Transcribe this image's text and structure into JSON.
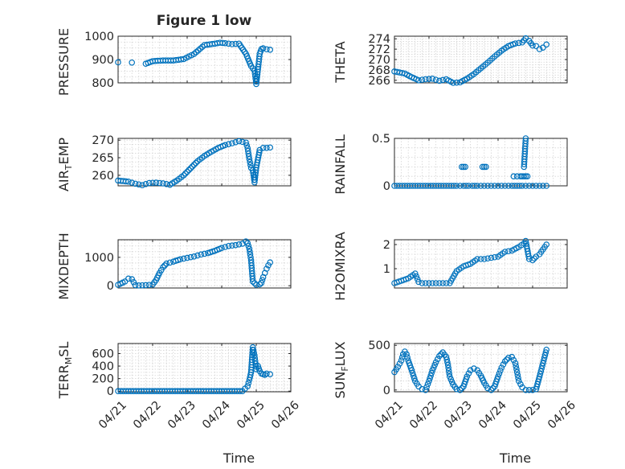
{
  "figure_title": "Figure 1 low",
  "marker_color": "#0072bd",
  "chart_data": [
    {
      "type": "scatter",
      "id": "pressure",
      "ylabel": "PRESSURE",
      "ylim": [
        800,
        1000
      ],
      "yticks": [
        800,
        900,
        1000
      ],
      "xlim": [
        "04/21",
        "04/26"
      ],
      "xticks": [
        "04/21",
        "04/22",
        "04/23",
        "04/24",
        "04/25",
        "04/26"
      ],
      "xlabel": "",
      "grid": true,
      "series": [
        {
          "x": [
            0.0,
            0.4,
            0.8,
            1.0,
            1.3,
            1.6,
            1.9,
            2.2,
            2.5,
            2.8,
            2.95,
            3.1,
            3.3,
            3.5,
            3.7,
            3.85,
            3.95,
            4.0,
            4.05,
            4.1,
            4.15,
            4.2,
            4.3,
            4.4
          ],
          "y": [
            888,
            887,
            882,
            893,
            896,
            896,
            902,
            924,
            962,
            968,
            972,
            970,
            966,
            968,
            925,
            872,
            852,
            795,
            858,
            925,
            945,
            948,
            944,
            942
          ]
        }
      ]
    },
    {
      "type": "scatter",
      "id": "theta",
      "ylabel": "THETA",
      "ylim": [
        265.5,
        274.5
      ],
      "yticks": [
        266,
        268,
        270,
        272,
        274
      ],
      "xlim": [
        "04/21",
        "04/26"
      ],
      "xticks": [
        "04/21",
        "04/22",
        "04/23",
        "04/24",
        "04/25",
        "04/26"
      ],
      "xlabel": "",
      "grid": true,
      "series": [
        {
          "x": [
            0.0,
            0.3,
            0.5,
            0.7,
            0.9,
            1.1,
            1.3,
            1.5,
            1.7,
            1.9,
            2.1,
            2.3,
            2.5,
            2.7,
            2.9,
            3.1,
            3.3,
            3.5,
            3.7,
            3.8,
            3.9,
            4.0,
            4.1,
            4.2,
            4.3,
            4.4
          ],
          "y": [
            267.7,
            267.3,
            266.6,
            266.0,
            266.2,
            266.3,
            265.9,
            266.2,
            265.5,
            265.6,
            266.3,
            267.2,
            268.3,
            269.4,
            270.6,
            271.7,
            272.6,
            273.1,
            273.3,
            274.1,
            273.6,
            272.7,
            272.6,
            272.0,
            272.3,
            272.9
          ]
        }
      ]
    },
    {
      "type": "scatter",
      "id": "air_temp",
      "ylabel": "AIR_TEMP",
      "ylim": [
        257,
        270.5
      ],
      "yticks": [
        260,
        265,
        270
      ],
      "xlim": [
        "04/21",
        "04/26"
      ],
      "xticks": [
        "04/21",
        "04/22",
        "04/23",
        "04/24",
        "04/25",
        "04/26"
      ],
      "xlabel": "",
      "grid": true,
      "series": [
        {
          "x": [
            0.0,
            0.3,
            0.5,
            0.7,
            0.9,
            1.1,
            1.3,
            1.5,
            1.7,
            1.9,
            2.1,
            2.3,
            2.5,
            2.7,
            2.9,
            3.1,
            3.3,
            3.5,
            3.7,
            3.75,
            3.8,
            3.85,
            3.9,
            3.95,
            4.0,
            4.1,
            4.2,
            4.3,
            4.4
          ],
          "y": [
            258.5,
            258.2,
            257.6,
            257.2,
            257.8,
            257.9,
            257.7,
            257.3,
            258.5,
            260.0,
            262.0,
            264.0,
            265.5,
            266.7,
            267.8,
            268.6,
            269.1,
            269.7,
            269.3,
            267.7,
            264.6,
            262.1,
            261.4,
            258.0,
            262.2,
            267.2,
            267.8,
            267.8,
            267.9
          ]
        }
      ]
    },
    {
      "type": "scatter",
      "id": "rainfall",
      "ylabel": "RAINFALL",
      "ylim": [
        0,
        0.5
      ],
      "yticks": [
        0,
        0.5
      ],
      "xlim": [
        "04/21",
        "04/26"
      ],
      "xticks": [
        "04/21",
        "04/22",
        "04/23",
        "04/24",
        "04/25",
        "04/26"
      ],
      "xlabel": "",
      "grid": true,
      "series": [
        {
          "x": [
            0.0,
            0.3,
            0.6,
            0.9,
            1.2,
            1.5,
            1.8,
            2.0,
            2.15,
            2.25,
            2.4,
            2.6,
            2.8,
            2.9,
            3.0,
            3.2,
            3.4,
            3.55,
            3.7,
            3.8,
            3.9,
            4.0,
            4.2,
            4.4,
            1.95,
            2.0,
            2.05,
            2.55,
            2.6,
            2.65,
            3.45,
            3.55,
            3.65,
            3.7,
            3.75,
            3.8,
            3.85,
            3.75,
            3.8
          ],
          "y": [
            0,
            0,
            0,
            0,
            0,
            0,
            0,
            0,
            0,
            0,
            0,
            0,
            0,
            0,
            0,
            0,
            0,
            0,
            0,
            0,
            0,
            0,
            0,
            0,
            0.2,
            0.2,
            0.2,
            0.2,
            0.2,
            0.2,
            0.1,
            0.1,
            0.1,
            0.1,
            0.1,
            0.1,
            0.1,
            0.2,
            0.5
          ]
        }
      ]
    },
    {
      "type": "scatter",
      "id": "mixdepth",
      "ylabel": "MIXDEPTH",
      "ylim": [
        -80,
        1620
      ],
      "yticks": [
        0,
        1000
      ],
      "xlim": [
        "04/21",
        "04/26"
      ],
      "xticks": [
        "04/21",
        "04/22",
        "04/23",
        "04/24",
        "04/25",
        "04/26"
      ],
      "xlabel": "",
      "grid": true,
      "series": [
        {
          "x": [
            0.0,
            0.2,
            0.3,
            0.4,
            0.5,
            0.6,
            0.8,
            1.0,
            1.1,
            1.2,
            1.3,
            1.4,
            1.6,
            1.8,
            2.0,
            2.2,
            2.4,
            2.6,
            2.8,
            3.0,
            3.2,
            3.4,
            3.6,
            3.7,
            3.75,
            3.8,
            3.85,
            3.9,
            4.0,
            4.1,
            4.15,
            4.2,
            4.25,
            4.3,
            4.35,
            4.4
          ],
          "y": [
            30,
            150,
            250,
            230,
            20,
            10,
            20,
            40,
            200,
            450,
            650,
            780,
            850,
            930,
            980,
            1030,
            1100,
            1150,
            1230,
            1330,
            1400,
            1430,
            1480,
            1560,
            1500,
            1300,
            900,
            150,
            30,
            50,
            100,
            300,
            450,
            600,
            720,
            820
          ]
        }
      ]
    },
    {
      "type": "scatter",
      "id": "h2omixra",
      "ylabel": "H2OMIXRA",
      "ylim": [
        0.2,
        2.2
      ],
      "yticks": [
        1,
        2
      ],
      "ytick_labels": [
        "1",
        "2"
      ],
      "xlim": [
        "04/21",
        "04/26"
      ],
      "xticks": [
        "04/21",
        "04/22",
        "04/23",
        "04/24",
        "04/25",
        "04/26"
      ],
      "xlabel": "",
      "grid": true,
      "series": [
        {
          "x": [
            0.0,
            0.2,
            0.4,
            0.6,
            0.7,
            0.8,
            1.0,
            1.2,
            1.4,
            1.6,
            1.8,
            2.0,
            2.2,
            2.4,
            2.6,
            2.8,
            3.0,
            3.2,
            3.4,
            3.6,
            3.75,
            3.8,
            3.9,
            4.0,
            4.1,
            4.2,
            4.3,
            4.4
          ],
          "y": [
            0.4,
            0.5,
            0.6,
            0.8,
            0.45,
            0.4,
            0.4,
            0.4,
            0.4,
            0.4,
            0.9,
            1.1,
            1.2,
            1.4,
            1.4,
            1.45,
            1.5,
            1.7,
            1.75,
            1.9,
            2.05,
            2.15,
            1.4,
            1.35,
            1.5,
            1.6,
            1.8,
            2.0
          ]
        }
      ]
    },
    {
      "type": "scatter",
      "id": "terr_msl",
      "ylabel": "TERR_MSL",
      "ylim": [
        -10,
        760
      ],
      "yticks": [
        0,
        200,
        400,
        600
      ],
      "xlim": [
        "04/21",
        "04/26"
      ],
      "xticks": [
        "04/21",
        "04/22",
        "04/23",
        "04/24",
        "04/25",
        "04/26"
      ],
      "xtick_labels": [
        "04/21",
        "04/22",
        "04/23",
        "04/24",
        "04/25",
        "04/26"
      ],
      "xlabel": "Time",
      "grid": true,
      "series": [
        {
          "x": [
            0.0,
            0.3,
            0.6,
            0.9,
            1.2,
            1.5,
            1.8,
            2.1,
            2.4,
            2.7,
            3.0,
            3.3,
            3.6,
            3.75,
            3.8,
            3.85,
            3.9,
            3.95,
            4.0,
            4.05,
            4.1,
            4.15,
            4.2,
            4.25,
            4.3,
            4.4
          ],
          "y": [
            0,
            0,
            0,
            0,
            0,
            0,
            0,
            0,
            0,
            0,
            0,
            0,
            0,
            80,
            180,
            300,
            700,
            570,
            350,
            400,
            320,
            280,
            270,
            260,
            280,
            270
          ]
        }
      ]
    },
    {
      "type": "scatter",
      "id": "sun_flux",
      "ylabel": "SUN_FLUX",
      "ylim": [
        -20,
        520
      ],
      "yticks": [
        0,
        500
      ],
      "xlim": [
        "04/21",
        "04/26"
      ],
      "xticks": [
        "04/21",
        "04/22",
        "04/23",
        "04/24",
        "04/25",
        "04/26"
      ],
      "xtick_labels": [
        "04/21",
        "04/22",
        "04/23",
        "04/24",
        "04/25",
        "04/26"
      ],
      "xlabel": "Time",
      "grid": true,
      "series": [
        {
          "x": [
            0.0,
            0.1,
            0.2,
            0.25,
            0.3,
            0.35,
            0.4,
            0.5,
            0.6,
            0.7,
            0.8,
            0.9,
            1.0,
            1.1,
            1.2,
            1.3,
            1.4,
            1.5,
            1.55,
            1.6,
            1.7,
            1.8,
            1.9,
            2.0,
            2.1,
            2.2,
            2.3,
            2.4,
            2.5,
            2.6,
            2.7,
            2.8,
            2.9,
            3.0,
            3.1,
            3.2,
            3.3,
            3.4,
            3.5,
            3.55,
            3.6,
            3.7,
            3.8,
            3.9,
            4.0,
            4.1,
            4.2,
            4.3,
            4.4
          ],
          "y": [
            200,
            260,
            330,
            400,
            430,
            400,
            330,
            220,
            100,
            40,
            10,
            0,
            100,
            220,
            310,
            380,
            420,
            370,
            280,
            150,
            60,
            10,
            0,
            40,
            150,
            220,
            240,
            220,
            160,
            80,
            20,
            0,
            40,
            150,
            250,
            320,
            360,
            370,
            300,
            200,
            100,
            30,
            0,
            0,
            0,
            10,
            150,
            300,
            450
          ]
        }
      ]
    }
  ]
}
